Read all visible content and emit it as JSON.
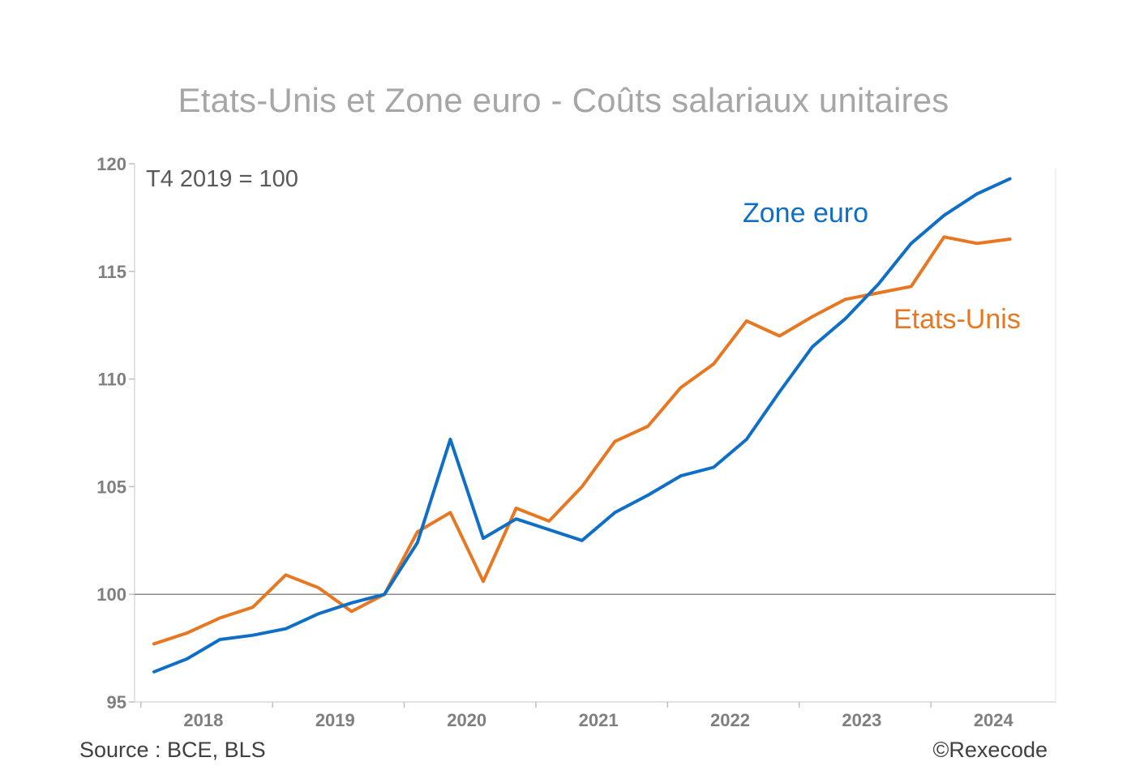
{
  "chart_data": {
    "type": "line",
    "title": "Etats-Unis et Zone euro - Coûts salariaux unitaires",
    "annotation": "T4 2019 = 100",
    "ylim": [
      95,
      120
    ],
    "yticks": [
      95,
      100,
      105,
      110,
      115,
      120
    ],
    "xticks": [
      "2018",
      "2019",
      "2020",
      "2021",
      "2022",
      "2023",
      "2024"
    ],
    "reference_line": 100,
    "x": [
      "T1 2018",
      "T2 2018",
      "T3 2018",
      "T4 2018",
      "T1 2019",
      "T2 2019",
      "T3 2019",
      "T4 2019",
      "T1 2020",
      "T2 2020",
      "T3 2020",
      "T4 2020",
      "T1 2021",
      "T2 2021",
      "T3 2021",
      "T4 2021",
      "T1 2022",
      "T2 2022",
      "T3 2022",
      "T4 2022",
      "T1 2023",
      "T2 2023",
      "T3 2023",
      "T4 2023",
      "T1 2024",
      "T2 2024",
      "T3 2024"
    ],
    "series": [
      {
        "name": "Zone euro",
        "color": "#0f6fc6",
        "values": [
          96.4,
          97.0,
          97.9,
          98.1,
          98.4,
          99.1,
          99.6,
          100.0,
          102.4,
          107.2,
          102.6,
          103.5,
          103.0,
          102.5,
          103.8,
          104.6,
          105.5,
          105.9,
          107.2,
          109.4,
          111.5,
          112.8,
          114.4,
          116.3,
          117.6,
          118.6,
          119.3
        ]
      },
      {
        "name": "Etats-Unis",
        "color": "#e87722",
        "values": [
          97.7,
          98.2,
          98.9,
          99.4,
          100.9,
          100.3,
          99.2,
          100.0,
          102.9,
          103.8,
          100.6,
          104.0,
          103.4,
          105.0,
          107.1,
          107.8,
          109.6,
          110.7,
          112.7,
          112.0,
          112.9,
          113.7,
          114.0,
          114.3,
          116.6,
          116.3,
          116.5
        ]
      }
    ]
  },
  "footer": {
    "source": "Source : BCE, BLS",
    "copyright": "©Rexecode"
  }
}
